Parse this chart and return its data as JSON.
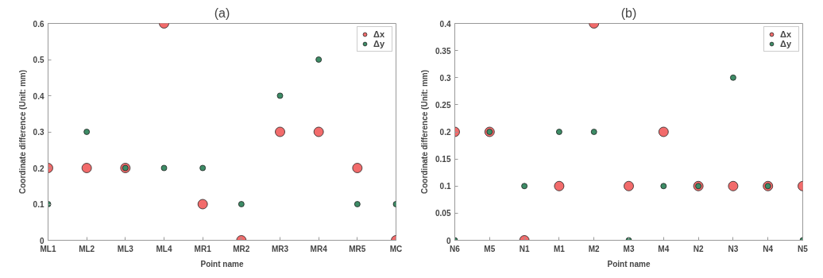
{
  "chart_data": [
    {
      "type": "scatter",
      "title": "(a)",
      "xlabel": "Point name",
      "ylabel": "Coordinate difference (Unit: mm)",
      "categories": [
        "ML1",
        "ML2",
        "ML3",
        "ML4",
        "MR1",
        "MR2",
        "MR3",
        "MR4",
        "MR5",
        "MC"
      ],
      "series": [
        {
          "name": "Δx",
          "color": "#f26b6b",
          "values": [
            0.2,
            0.2,
            0.2,
            0.6,
            0.1,
            0,
            0.3,
            0.3,
            0.2,
            0
          ]
        },
        {
          "name": "Δy",
          "color": "#3d8c66",
          "values": [
            0.1,
            0.3,
            0.2,
            0.2,
            0.2,
            0.1,
            0.4,
            0.5,
            0.1,
            0.1
          ]
        }
      ],
      "ylim": [
        0,
        0.6
      ],
      "yticks": [
        0,
        0.1,
        0.2,
        0.3,
        0.4,
        0.5,
        0.6
      ],
      "grid": false,
      "legend": "top right",
      "marker": "circle"
    },
    {
      "type": "scatter",
      "title": "(b)",
      "xlabel": "Point name",
      "ylabel": "Coordinate difference (Unit: mm)",
      "categories": [
        "N6",
        "M5",
        "N1",
        "M1",
        "M2",
        "M3",
        "M4",
        "N2",
        "N3",
        "N4",
        "N5"
      ],
      "series": [
        {
          "name": "Δx",
          "color": "#f26b6b",
          "values": [
            0.2,
            0.2,
            0,
            0.1,
            0.4,
            0.1,
            0.2,
            0.1,
            0.1,
            0.1,
            0.1
          ]
        },
        {
          "name": "Δy",
          "color": "#3d8c66",
          "values": [
            0,
            0.2,
            0.1,
            0.2,
            0.2,
            0,
            0.1,
            0.1,
            0.3,
            0.1,
            0
          ]
        }
      ],
      "ylim": [
        0,
        0.4
      ],
      "yticks": [
        0,
        0.05,
        0.1,
        0.15,
        0.2,
        0.25,
        0.3,
        0.35,
        0.4
      ],
      "grid": false,
      "legend": "top right",
      "marker": "circle"
    }
  ]
}
